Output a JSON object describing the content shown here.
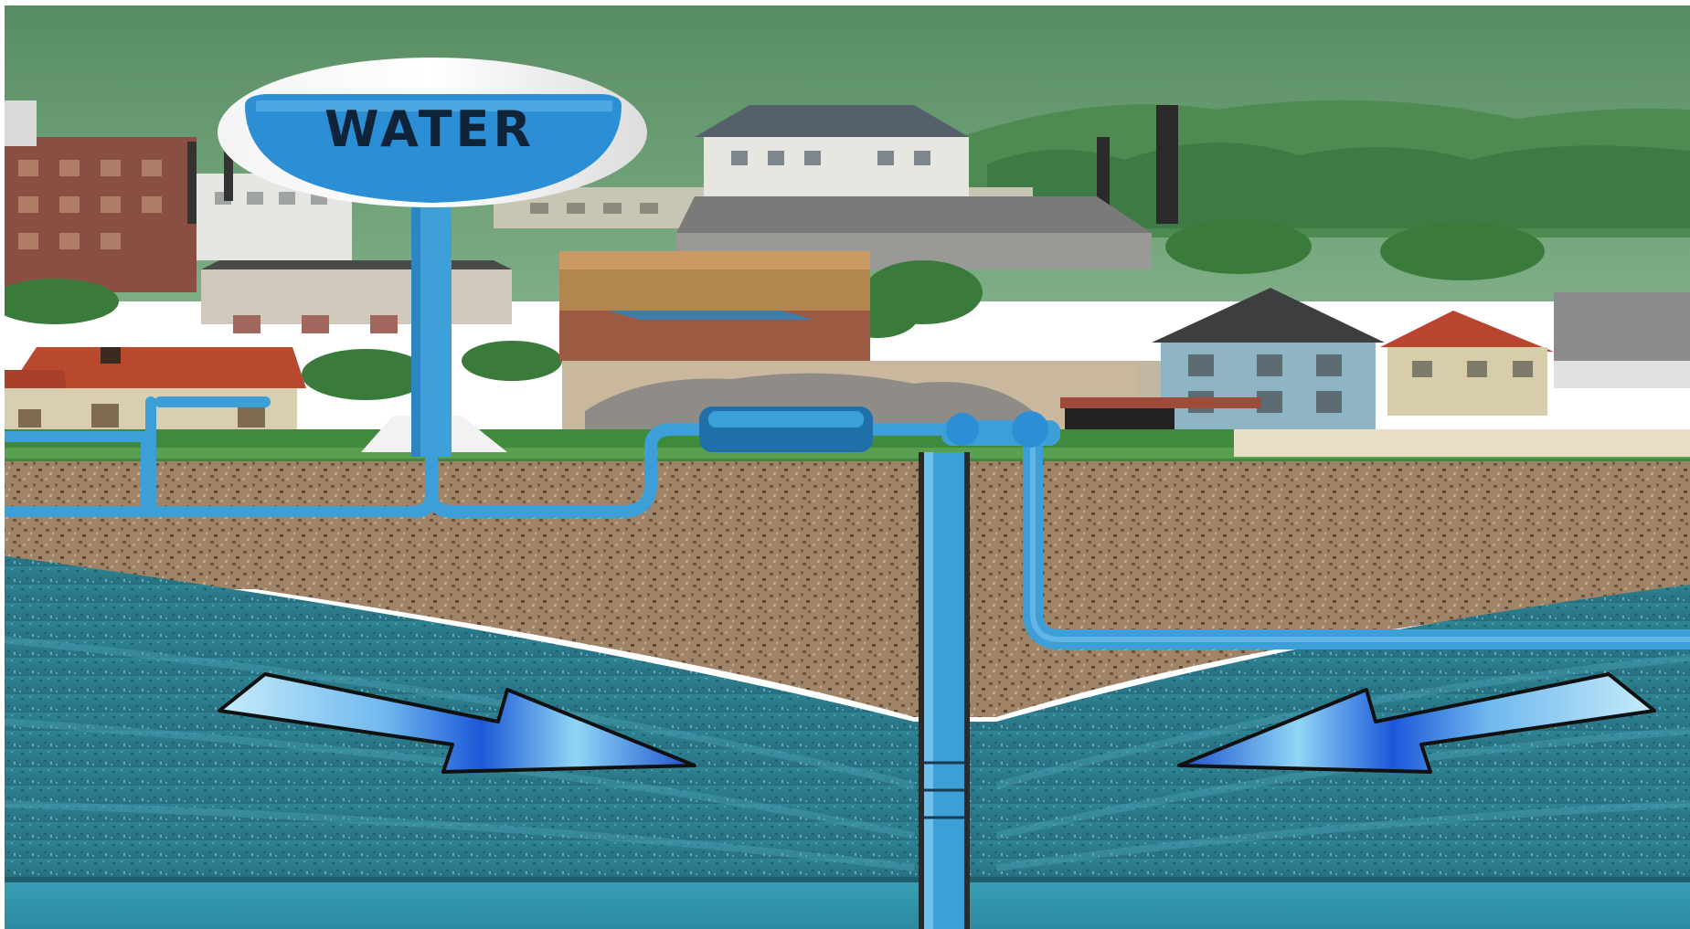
{
  "tower": {
    "label": "WATER"
  },
  "colors": {
    "sky": "#5e9468",
    "hills": "#4f8a52",
    "ground_grass": "#3f8a3c",
    "soil": "#9b8064",
    "aquifer": "#2e7f8f",
    "deep_water": "#3a9bb0",
    "pipe": "#3d9fd8",
    "pipe_dark": "#1f6fa8",
    "arrow_light": "#9fdcf5",
    "arrow_dark": "#1a5fd6",
    "tower_tank": "#2c8fd6"
  },
  "arrows": {
    "left_direction": "down-right",
    "right_direction": "down-left"
  }
}
